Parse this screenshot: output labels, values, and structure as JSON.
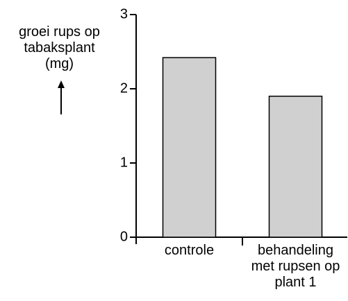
{
  "chart_data": {
    "type": "bar",
    "y_label": "groei rups op tabaksplant (mg)",
    "categories": [
      "controle",
      "behandeling met rupsen op plant 1"
    ],
    "values": [
      2.42,
      1.9
    ],
    "color": "#d0d0d0",
    "ylim": [
      0,
      3
    ],
    "yticks": [
      0,
      1,
      2,
      3
    ],
    "grid": false
  }
}
